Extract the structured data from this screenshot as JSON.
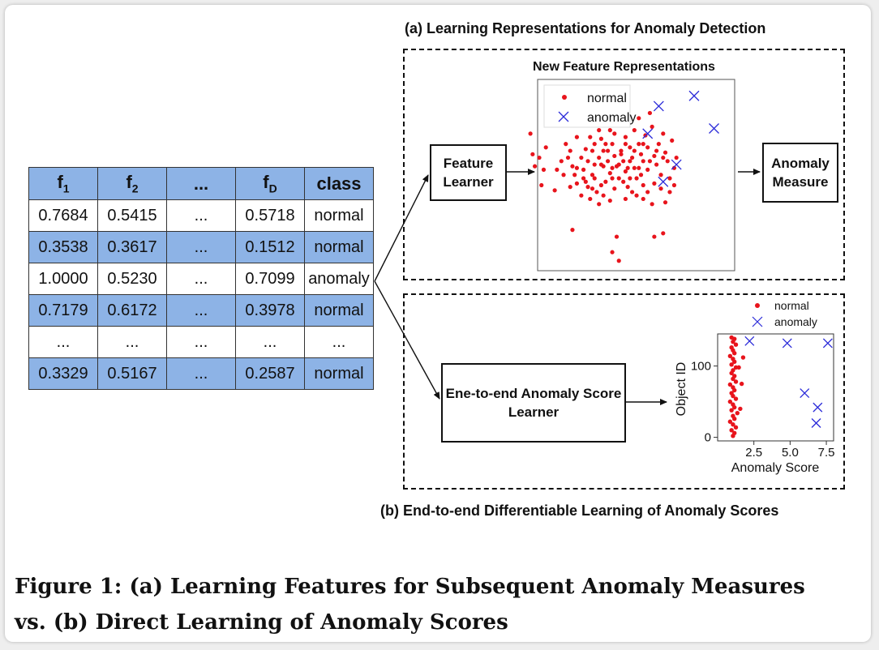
{
  "table": {
    "headers": [
      {
        "main": "f",
        "sub": "1"
      },
      {
        "main": "f",
        "sub": "2"
      },
      {
        "main": "...",
        "sub": ""
      },
      {
        "main": "f",
        "sub": "D"
      },
      {
        "main": "class",
        "sub": ""
      }
    ],
    "rows": [
      [
        "0.7684",
        "0.5415",
        "...",
        "0.5718",
        "normal"
      ],
      [
        "0.3538",
        "0.3617",
        "...",
        "0.1512",
        "normal"
      ],
      [
        "1.0000",
        "0.5230",
        "...",
        "0.7099",
        "anomaly"
      ],
      [
        "0.7179",
        "0.6172",
        "...",
        "0.3978",
        "normal"
      ],
      [
        "...",
        "...",
        "...",
        "...",
        "..."
      ],
      [
        "0.3329",
        "0.5167",
        "...",
        "0.2587",
        "normal"
      ]
    ],
    "shaded_rows": [
      1,
      3,
      5
    ]
  },
  "section_a": {
    "title": "(a) Learning Representations for Anomaly Detection",
    "feature_learner": "Feature Learner",
    "plot_title": "New Feature Representations",
    "anomaly_measure": "Anomaly Measure"
  },
  "section_b": {
    "title": "(b) End-to-end Differentiable Learning of Anomaly Scores",
    "score_learner": "Ene-to-end Anomaly Score Learner"
  },
  "legend": {
    "normal": "normal",
    "anomaly": "anomaly"
  },
  "colors": {
    "normal": "#e8141c",
    "anomaly": "#2b2bd9",
    "table_shade": "#8db3e6"
  },
  "chart_data": [
    {
      "type": "scatter",
      "title": "New Feature Representations",
      "xlabel": "",
      "ylabel": "",
      "legend": "top-left",
      "series": [
        {
          "name": "normal",
          "points": [
            [
              0.29,
              0.76
            ],
            [
              0.3,
              0.64
            ],
            [
              0.33,
              0.62
            ],
            [
              0.36,
              0.68
            ],
            [
              0.31,
              0.57
            ],
            [
              0.35,
              0.55
            ],
            [
              0.34,
              0.46
            ],
            [
              0.4,
              0.43
            ],
            [
              0.43,
              0.6
            ],
            [
              0.45,
              0.7
            ],
            [
              0.47,
              0.66
            ],
            [
              0.48,
              0.57
            ],
            [
              0.49,
              0.52
            ],
            [
              0.5,
              0.47
            ],
            [
              0.5,
              0.74
            ],
            [
              0.52,
              0.62
            ],
            [
              0.53,
              0.55
            ],
            [
              0.54,
              0.67
            ],
            [
              0.55,
              0.45
            ],
            [
              0.55,
              0.6
            ],
            [
              0.56,
              0.74
            ],
            [
              0.57,
              0.66
            ],
            [
              0.58,
              0.58
            ],
            [
              0.58,
              0.5
            ],
            [
              0.59,
              0.42
            ],
            [
              0.6,
              0.62
            ],
            [
              0.61,
              0.73
            ],
            [
              0.62,
              0.57
            ],
            [
              0.62,
              0.66
            ],
            [
              0.63,
              0.48
            ],
            [
              0.64,
              0.6
            ],
            [
              0.65,
              0.53
            ],
            [
              0.65,
              0.78
            ],
            [
              0.66,
              0.7
            ],
            [
              0.67,
              0.63
            ],
            [
              0.68,
              0.57
            ],
            [
              0.69,
              0.5
            ],
            [
              0.7,
              0.82
            ],
            [
              0.7,
              0.66
            ],
            [
              0.71,
              0.6
            ],
            [
              0.72,
              0.74
            ],
            [
              0.72,
              0.54
            ],
            [
              0.73,
              0.45
            ],
            [
              0.74,
              0.68
            ],
            [
              0.75,
              0.62
            ],
            [
              0.76,
              0.78
            ],
            [
              0.76,
              0.56
            ],
            [
              0.77,
              0.5
            ],
            [
              0.78,
              0.85
            ],
            [
              0.78,
              0.7
            ],
            [
              0.79,
              0.64
            ],
            [
              0.8,
              0.6
            ],
            [
              0.8,
              0.46
            ],
            [
              0.81,
              0.75
            ],
            [
              0.82,
              0.68
            ],
            [
              0.82,
              0.55
            ],
            [
              0.83,
              0.88
            ],
            [
              0.84,
              0.8
            ],
            [
              0.85,
              0.63
            ],
            [
              0.86,
              0.58
            ],
            [
              0.87,
              0.7
            ],
            [
              0.88,
              0.52
            ],
            [
              0.89,
              0.76
            ],
            [
              0.9,
              0.65
            ],
            [
              0.91,
              0.6
            ],
            [
              0.92,
              0.5
            ],
            [
              0.93,
              0.72
            ],
            [
              0.94,
              0.56
            ],
            [
              0.6,
              0.78
            ],
            [
              0.63,
              0.7
            ],
            [
              0.67,
              0.76
            ],
            [
              0.74,
              0.5
            ],
            [
              0.69,
              0.58
            ],
            [
              0.71,
              0.48
            ],
            [
              0.75,
              0.42
            ],
            [
              0.79,
              0.52
            ],
            [
              0.57,
              0.52
            ],
            [
              0.54,
              0.48
            ],
            [
              0.52,
              0.4
            ],
            [
              0.47,
              0.45
            ],
            [
              0.44,
              0.52
            ],
            [
              0.41,
              0.55
            ],
            [
              0.46,
              0.62
            ],
            [
              0.62,
              0.4
            ],
            [
              0.67,
              0.44
            ],
            [
              0.56,
              0.38
            ],
            [
              0.6,
              0.35
            ],
            [
              0.65,
              0.37
            ],
            [
              0.72,
              0.38
            ],
            [
              0.77,
              0.4
            ],
            [
              0.82,
              0.42
            ],
            [
              0.85,
              0.47
            ],
            [
              0.88,
              0.44
            ],
            [
              0.92,
              0.42
            ],
            [
              0.89,
              0.62
            ],
            [
              0.86,
              0.66
            ],
            [
              0.48,
              0.2
            ],
            [
              0.68,
              0.16
            ],
            [
              0.66,
              0.07
            ],
            [
              0.69,
              0.02
            ],
            [
              0.85,
              0.16
            ],
            [
              0.89,
              0.18
            ],
            [
              0.61,
              0.58
            ],
            [
              0.66,
              0.56
            ],
            [
              0.7,
              0.64
            ],
            [
              0.74,
              0.6
            ],
            [
              0.78,
              0.56
            ],
            [
              0.73,
              0.56
            ],
            [
              0.64,
              0.66
            ],
            [
              0.58,
              0.7
            ],
            [
              0.5,
              0.56
            ],
            [
              0.83,
              0.6
            ],
            [
              0.8,
              0.7
            ],
            [
              0.76,
              0.66
            ],
            [
              0.72,
              0.7
            ],
            [
              0.66,
              0.5
            ],
            [
              0.61,
              0.46
            ],
            [
              0.57,
              0.44
            ],
            [
              0.53,
              0.5
            ],
            [
              0.8,
              0.38
            ],
            [
              0.84,
              0.35
            ],
            [
              0.9,
              0.36
            ],
            [
              0.94,
              0.46
            ],
            [
              0.95,
              0.62
            ]
          ]
        },
        {
          "name": "anomaly",
          "points": [
            [
              0.87,
              0.92
            ],
            [
              1.03,
              0.98
            ],
            [
              1.12,
              0.79
            ],
            [
              0.82,
              0.76
            ],
            [
              0.95,
              0.58
            ],
            [
              0.89,
              0.48
            ]
          ]
        }
      ]
    },
    {
      "type": "scatter",
      "xlabel": "Anomaly Score",
      "ylabel": "Object ID",
      "xticks": [
        "2.5",
        "5.0",
        "7.5"
      ],
      "yticks": [
        "0",
        "100"
      ],
      "xlim": [
        0,
        8
      ],
      "ylim": [
        -5,
        145
      ],
      "legend": "top-right",
      "series": [
        {
          "name": "normal",
          "points": [
            [
              0.5,
              2
            ],
            [
              0.6,
              6
            ],
            [
              0.4,
              10
            ],
            [
              0.7,
              14
            ],
            [
              0.5,
              18
            ],
            [
              0.3,
              22
            ],
            [
              0.6,
              26
            ],
            [
              0.5,
              30
            ],
            [
              0.8,
              34
            ],
            [
              0.4,
              38
            ],
            [
              0.6,
              42
            ],
            [
              0.5,
              46
            ],
            [
              0.3,
              50
            ],
            [
              0.7,
              54
            ],
            [
              0.5,
              58
            ],
            [
              0.4,
              62
            ],
            [
              0.6,
              66
            ],
            [
              0.5,
              70
            ],
            [
              0.3,
              74
            ],
            [
              0.7,
              78
            ],
            [
              0.5,
              82
            ],
            [
              0.6,
              86
            ],
            [
              0.4,
              90
            ],
            [
              0.5,
              94
            ],
            [
              0.7,
              98
            ],
            [
              0.4,
              102
            ],
            [
              0.6,
              106
            ],
            [
              0.5,
              110
            ],
            [
              0.3,
              114
            ],
            [
              0.6,
              118
            ],
            [
              0.5,
              122
            ],
            [
              0.4,
              126
            ],
            [
              0.7,
              130
            ],
            [
              0.5,
              134
            ],
            [
              0.6,
              138
            ],
            [
              0.4,
              140
            ],
            [
              1.2,
              112
            ],
            [
              1.1,
              75
            ],
            [
              1.0,
              40
            ],
            [
              0.9,
              98
            ]
          ]
        },
        {
          "name": "anomaly",
          "points": [
            [
              2.2,
              135
            ],
            [
              4.8,
              132
            ],
            [
              7.6,
              132
            ],
            [
              6.0,
              62
            ],
            [
              6.9,
              42
            ],
            [
              6.8,
              20
            ]
          ]
        }
      ]
    }
  ],
  "caption": {
    "line1": "Figure 1: (a) Learning Features for Subsequent Anomaly Measures",
    "line2": "vs. (b) Direct Learning of Anomaly Scores"
  }
}
